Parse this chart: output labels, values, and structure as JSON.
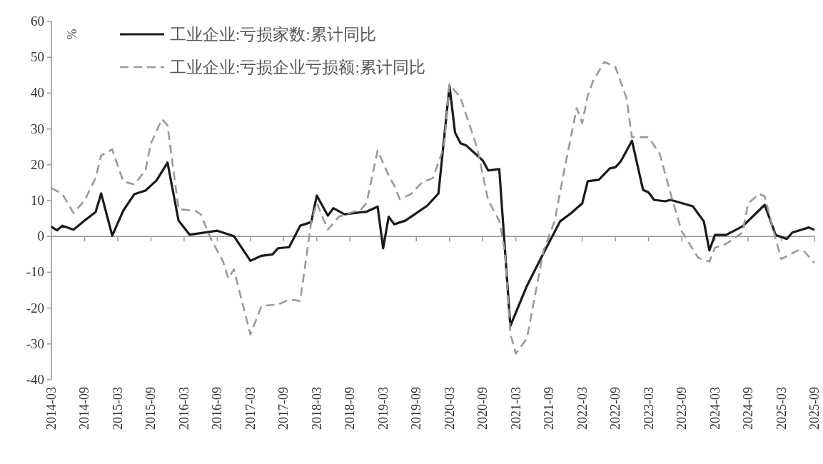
{
  "chart_data": {
    "type": "line",
    "ylabel": "%",
    "legend": "top left",
    "marker": "none",
    "xlim": [
      "2014-03",
      "2025-09"
    ],
    "ylim": [
      -40,
      60
    ],
    "xticks": [
      "2014-03",
      "2014-09",
      "2015-03",
      "2015-09",
      "2016-03",
      "2016-09",
      "2017-03",
      "2017-09",
      "2018-03",
      "2018-09",
      "2019-03",
      "2019-09",
      "2020-03",
      "2020-09",
      "2021-03",
      "2021-09",
      "2022-03",
      "2022-09",
      "2023-03",
      "2023-09",
      "2024-03",
      "2024-09",
      "2025-03",
      "2025-09"
    ],
    "yticks": [
      -40,
      -30,
      -20,
      -10,
      0,
      10,
      20,
      30,
      40,
      50,
      60
    ],
    "series": [
      {
        "name": "工业企业:亏损家数:累计同比",
        "color": "#1a1a1a",
        "line_style": "solid",
        "x": [
          "2014-03",
          "2014-04",
          "2014-05",
          "2014-07",
          "2014-09",
          "2014-11",
          "2014-12",
          "2015-02",
          "2015-04",
          "2015-06",
          "2015-08",
          "2015-10",
          "2015-12",
          "2016-02",
          "2016-04",
          "2016-06",
          "2016-09",
          "2016-12",
          "2017-03",
          "2017-05",
          "2017-07",
          "2017-08",
          "2017-10",
          "2017-12",
          "2018-02",
          "2018-03",
          "2018-05",
          "2018-06",
          "2018-08",
          "2018-12",
          "2019-02",
          "2019-03",
          "2019-04",
          "2019-05",
          "2019-07",
          "2019-09",
          "2019-11",
          "2020-01",
          "2020-03",
          "2020-04",
          "2020-05",
          "2020-06",
          "2020-09",
          "2020-10",
          "2020-12",
          "2021-02",
          "2021-05",
          "2021-08",
          "2021-11",
          "2022-01",
          "2022-03",
          "2022-04",
          "2022-06",
          "2022-08",
          "2022-09",
          "2022-10",
          "2022-12",
          "2023-02",
          "2023-03",
          "2023-04",
          "2023-06",
          "2023-07",
          "2023-11",
          "2024-01",
          "2024-02",
          "2024-03",
          "2024-05",
          "2024-08",
          "2024-12",
          "2025-02",
          "2025-04",
          "2025-05",
          "2025-08",
          "2025-09"
        ],
        "values": [
          2.7,
          1.7,
          3.0,
          1.9,
          4.4,
          6.8,
          12.0,
          0.2,
          7.2,
          11.8,
          12.8,
          15.6,
          20.6,
          4.4,
          0.5,
          0.9,
          1.6,
          0.1,
          -6.8,
          -5.4,
          -5.0,
          -3.3,
          -3.0,
          3.0,
          4.0,
          11.4,
          5.8,
          7.9,
          6.2,
          6.9,
          8.3,
          -3.3,
          5.5,
          3.4,
          4.4,
          6.5,
          8.6,
          12.0,
          42.0,
          29.0,
          26.0,
          25.4,
          21.2,
          18.4,
          18.8,
          -25.0,
          -13.8,
          -4.7,
          4.2,
          6.5,
          9.2,
          15.4,
          15.8,
          19.0,
          19.3,
          21.0,
          26.7,
          13.0,
          12.3,
          10.2,
          9.8,
          10.2,
          8.4,
          4.2,
          -3.9,
          0.4,
          0.4,
          2.8,
          8.8,
          0.4,
          -0.7,
          1.1,
          2.5,
          1.8
        ]
      },
      {
        "name": "工业企业:亏损企业亏损额:累计同比",
        "color": "#9a9a9a",
        "line_style": "dashed",
        "x": [
          "2014-03",
          "2014-05",
          "2014-07",
          "2014-09",
          "2014-11",
          "2014-12",
          "2015-02",
          "2015-04",
          "2015-06",
          "2015-08",
          "2015-09",
          "2015-11",
          "2015-12",
          "2016-02",
          "2016-05",
          "2016-06",
          "2016-08",
          "2016-10",
          "2016-11",
          "2016-12",
          "2017-03",
          "2017-05",
          "2017-08",
          "2017-10",
          "2017-12",
          "2018-02",
          "2018-03",
          "2018-05",
          "2018-07",
          "2018-11",
          "2018-12",
          "2019-02",
          "2019-04",
          "2019-05",
          "2019-06",
          "2019-08",
          "2019-10",
          "2019-12",
          "2020-02",
          "2020-03",
          "2020-05",
          "2020-08",
          "2020-10",
          "2020-12",
          "2021-01",
          "2021-02",
          "2021-03",
          "2021-05",
          "2021-08",
          "2021-10",
          "2021-12",
          "2022-02",
          "2022-03",
          "2022-04",
          "2022-05",
          "2022-07",
          "2022-09",
          "2022-11",
          "2022-12",
          "2023-03",
          "2023-05",
          "2023-07",
          "2023-09",
          "2023-12",
          "2024-02",
          "2024-03",
          "2024-05",
          "2024-08",
          "2024-09",
          "2024-11",
          "2024-12",
          "2025-02",
          "2025-03",
          "2025-06",
          "2025-07",
          "2025-09"
        ],
        "values": [
          13.5,
          11.8,
          6.5,
          10,
          16.3,
          22.6,
          24.3,
          15.3,
          14.5,
          18.4,
          26,
          32.7,
          31,
          7.6,
          7.2,
          6.2,
          -1.2,
          -6.8,
          -11.7,
          -9.2,
          -27.4,
          -19.4,
          -19,
          -17.6,
          -18,
          4.1,
          9.3,
          1.9,
          5.5,
          7.6,
          9.3,
          24,
          17,
          14.2,
          10.4,
          11.8,
          15,
          16.3,
          25,
          42.5,
          38.7,
          24.7,
          10,
          4.4,
          -4,
          -27.1,
          -32.7,
          -28.5,
          -4,
          4.2,
          20.4,
          35.8,
          31.6,
          39.3,
          43.5,
          48.7,
          47.3,
          38.6,
          27.7,
          27.7,
          23.1,
          11.9,
          1.4,
          -6,
          -7,
          -3.2,
          -2.1,
          1.1,
          9.2,
          11.9,
          11.2,
          -0.7,
          -6.3,
          -3.9,
          -3.9,
          -7.4
        ]
      }
    ]
  }
}
